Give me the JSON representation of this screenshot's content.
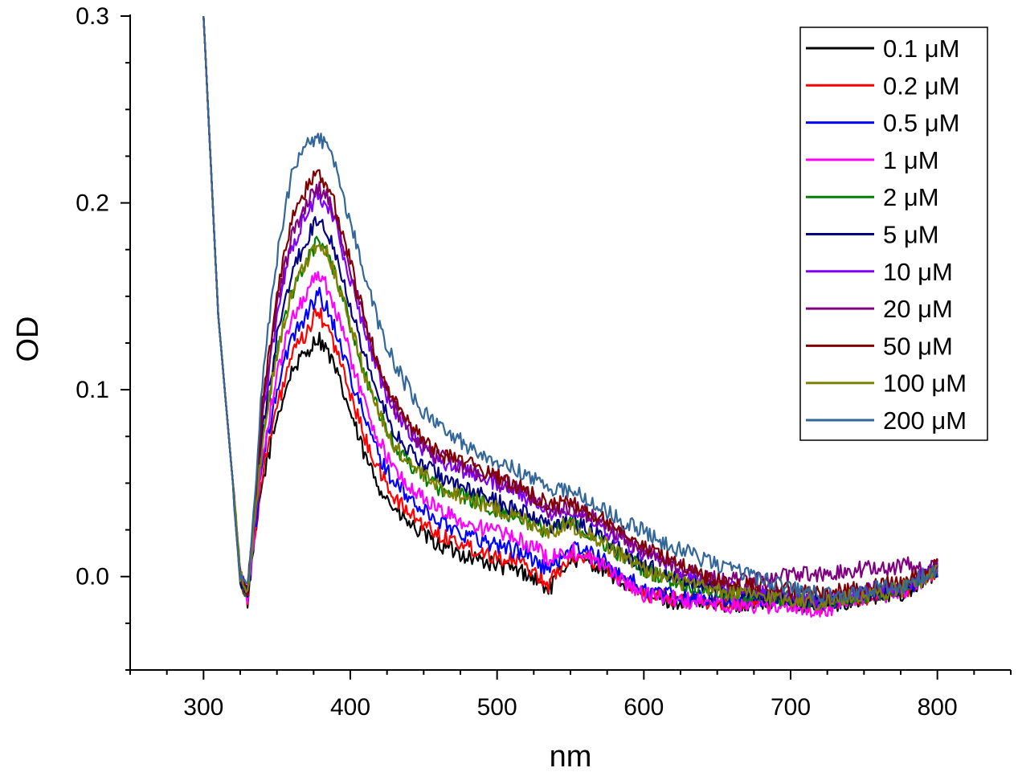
{
  "chart_data": {
    "type": "line",
    "title": "",
    "xlabel": "nm",
    "ylabel": "OD",
    "xlim": [
      250,
      850
    ],
    "ylim": [
      -0.05,
      0.3
    ],
    "x_ticks": [
      300,
      400,
      500,
      600,
      700,
      800
    ],
    "x_tick_labels": [
      "300",
      "400",
      "500",
      "600",
      "700",
      "800"
    ],
    "y_ticks": [
      0.0,
      0.1,
      0.2,
      0.3
    ],
    "y_tick_labels": [
      "0.0",
      "0.1",
      "0.2",
      "0.3"
    ],
    "grid": false,
    "legend_position": "top-right",
    "x": [
      300,
      310,
      320,
      325,
      330,
      335,
      340,
      350,
      360,
      370,
      378,
      385,
      390,
      400,
      410,
      420,
      430,
      440,
      450,
      460,
      480,
      500,
      520,
      535,
      550,
      565,
      580,
      600,
      620,
      650,
      700,
      720,
      750,
      780,
      800
    ],
    "series": [
      {
        "name": "0.1 μM",
        "color": "#000000",
        "values": [
          0.3,
          0.14,
          0.05,
          0.0,
          -0.013,
          0.02,
          0.05,
          0.085,
          0.11,
          0.12,
          0.128,
          0.12,
          0.11,
          0.088,
          0.064,
          0.048,
          0.036,
          0.028,
          0.022,
          0.017,
          0.011,
          0.006,
          0.002,
          -0.007,
          0.01,
          0.007,
          0.0,
          -0.01,
          -0.013,
          -0.015,
          -0.014,
          -0.016,
          -0.012,
          -0.008,
          0.003
        ]
      },
      {
        "name": "0.2 μM",
        "color": "#ff0000",
        "values": [
          0.3,
          0.14,
          0.05,
          0.0,
          -0.012,
          0.022,
          0.055,
          0.09,
          0.118,
          0.13,
          0.142,
          0.132,
          0.122,
          0.098,
          0.074,
          0.056,
          0.042,
          0.034,
          0.028,
          0.023,
          0.016,
          0.011,
          0.006,
          -0.004,
          0.012,
          0.009,
          0.002,
          -0.009,
          -0.012,
          -0.014,
          -0.013,
          -0.016,
          -0.011,
          -0.007,
          0.004
        ]
      },
      {
        "name": "0.5 μM",
        "color": "#0000ff",
        "values": [
          0.3,
          0.14,
          0.05,
          0.0,
          -0.012,
          0.024,
          0.06,
          0.1,
          0.128,
          0.14,
          0.152,
          0.142,
          0.132,
          0.108,
          0.084,
          0.064,
          0.05,
          0.042,
          0.035,
          0.03,
          0.022,
          0.017,
          0.012,
          0.003,
          0.016,
          0.012,
          0.004,
          -0.007,
          -0.01,
          -0.012,
          -0.012,
          -0.015,
          -0.01,
          -0.006,
          0.004
        ]
      },
      {
        "name": "1 μM",
        "color": "#ff00ff",
        "values": [
          0.3,
          0.14,
          0.05,
          0.0,
          -0.011,
          0.026,
          0.065,
          0.108,
          0.138,
          0.152,
          0.163,
          0.154,
          0.144,
          0.118,
          0.092,
          0.072,
          0.057,
          0.048,
          0.042,
          0.036,
          0.028,
          0.024,
          0.018,
          0.01,
          0.014,
          0.01,
          0.001,
          -0.01,
          -0.012,
          -0.015,
          -0.016,
          -0.018,
          -0.012,
          -0.007,
          0.003
        ]
      },
      {
        "name": "2 μM",
        "color": "#008000",
        "values": [
          0.3,
          0.14,
          0.05,
          0.0,
          -0.01,
          0.03,
          0.072,
          0.12,
          0.152,
          0.168,
          0.18,
          0.172,
          0.162,
          0.135,
          0.108,
          0.086,
          0.07,
          0.061,
          0.054,
          0.048,
          0.042,
          0.036,
          0.03,
          0.024,
          0.028,
          0.022,
          0.014,
          0.004,
          -0.002,
          -0.008,
          -0.012,
          -0.014,
          -0.01,
          -0.006,
          0.004
        ]
      },
      {
        "name": "5 μM",
        "color": "#000080",
        "values": [
          0.3,
          0.14,
          0.05,
          0.0,
          -0.01,
          0.033,
          0.078,
          0.128,
          0.162,
          0.18,
          0.192,
          0.184,
          0.174,
          0.146,
          0.118,
          0.095,
          0.078,
          0.067,
          0.06,
          0.054,
          0.046,
          0.04,
          0.034,
          0.027,
          0.03,
          0.024,
          0.016,
          0.006,
          0.0,
          -0.006,
          -0.012,
          -0.014,
          -0.01,
          -0.006,
          0.004
        ]
      },
      {
        "name": "10 μM",
        "color": "#8000ff",
        "values": [
          0.3,
          0.14,
          0.05,
          0.0,
          -0.009,
          0.036,
          0.085,
          0.14,
          0.176,
          0.194,
          0.205,
          0.198,
          0.188,
          0.16,
          0.13,
          0.106,
          0.088,
          0.076,
          0.068,
          0.062,
          0.056,
          0.05,
          0.042,
          0.034,
          0.036,
          0.03,
          0.022,
          0.012,
          0.004,
          -0.004,
          -0.01,
          -0.012,
          -0.008,
          -0.004,
          0.005
        ]
      },
      {
        "name": "20 μM",
        "color": "#800080",
        "values": [
          0.3,
          0.14,
          0.05,
          0.0,
          -0.009,
          0.038,
          0.088,
          0.145,
          0.182,
          0.2,
          0.208,
          0.202,
          0.193,
          0.164,
          0.134,
          0.11,
          0.091,
          0.078,
          0.07,
          0.064,
          0.058,
          0.052,
          0.044,
          0.036,
          0.038,
          0.032,
          0.024,
          0.014,
          0.006,
          -0.002,
          0.0,
          0.002,
          0.004,
          0.006,
          0.005
        ]
      },
      {
        "name": "50 μM",
        "color": "#800000",
        "values": [
          0.3,
          0.14,
          0.05,
          0.0,
          -0.008,
          0.04,
          0.092,
          0.152,
          0.19,
          0.208,
          0.216,
          0.208,
          0.198,
          0.168,
          0.137,
          0.112,
          0.094,
          0.081,
          0.073,
          0.066,
          0.06,
          0.054,
          0.046,
          0.038,
          0.04,
          0.034,
          0.026,
          0.016,
          0.008,
          -0.002,
          -0.008,
          -0.01,
          -0.006,
          -0.002,
          0.006
        ]
      },
      {
        "name": "100 μM",
        "color": "#808000",
        "values": [
          0.3,
          0.14,
          0.05,
          0.0,
          -0.01,
          0.03,
          0.072,
          0.12,
          0.152,
          0.168,
          0.18,
          0.172,
          0.162,
          0.135,
          0.108,
          0.086,
          0.07,
          0.061,
          0.054,
          0.048,
          0.042,
          0.036,
          0.03,
          0.024,
          0.028,
          0.022,
          0.014,
          0.004,
          -0.002,
          -0.008,
          -0.012,
          -0.014,
          -0.01,
          -0.006,
          0.004
        ]
      },
      {
        "name": "200 μM",
        "color": "#336699",
        "values": [
          0.3,
          0.14,
          0.05,
          0.0,
          -0.007,
          0.045,
          0.105,
          0.17,
          0.215,
          0.232,
          0.236,
          0.228,
          0.218,
          0.19,
          0.16,
          0.134,
          0.114,
          0.1,
          0.088,
          0.08,
          0.07,
          0.062,
          0.054,
          0.048,
          0.046,
          0.04,
          0.032,
          0.024,
          0.016,
          0.006,
          -0.006,
          -0.01,
          -0.008,
          -0.004,
          0.004
        ]
      }
    ]
  }
}
